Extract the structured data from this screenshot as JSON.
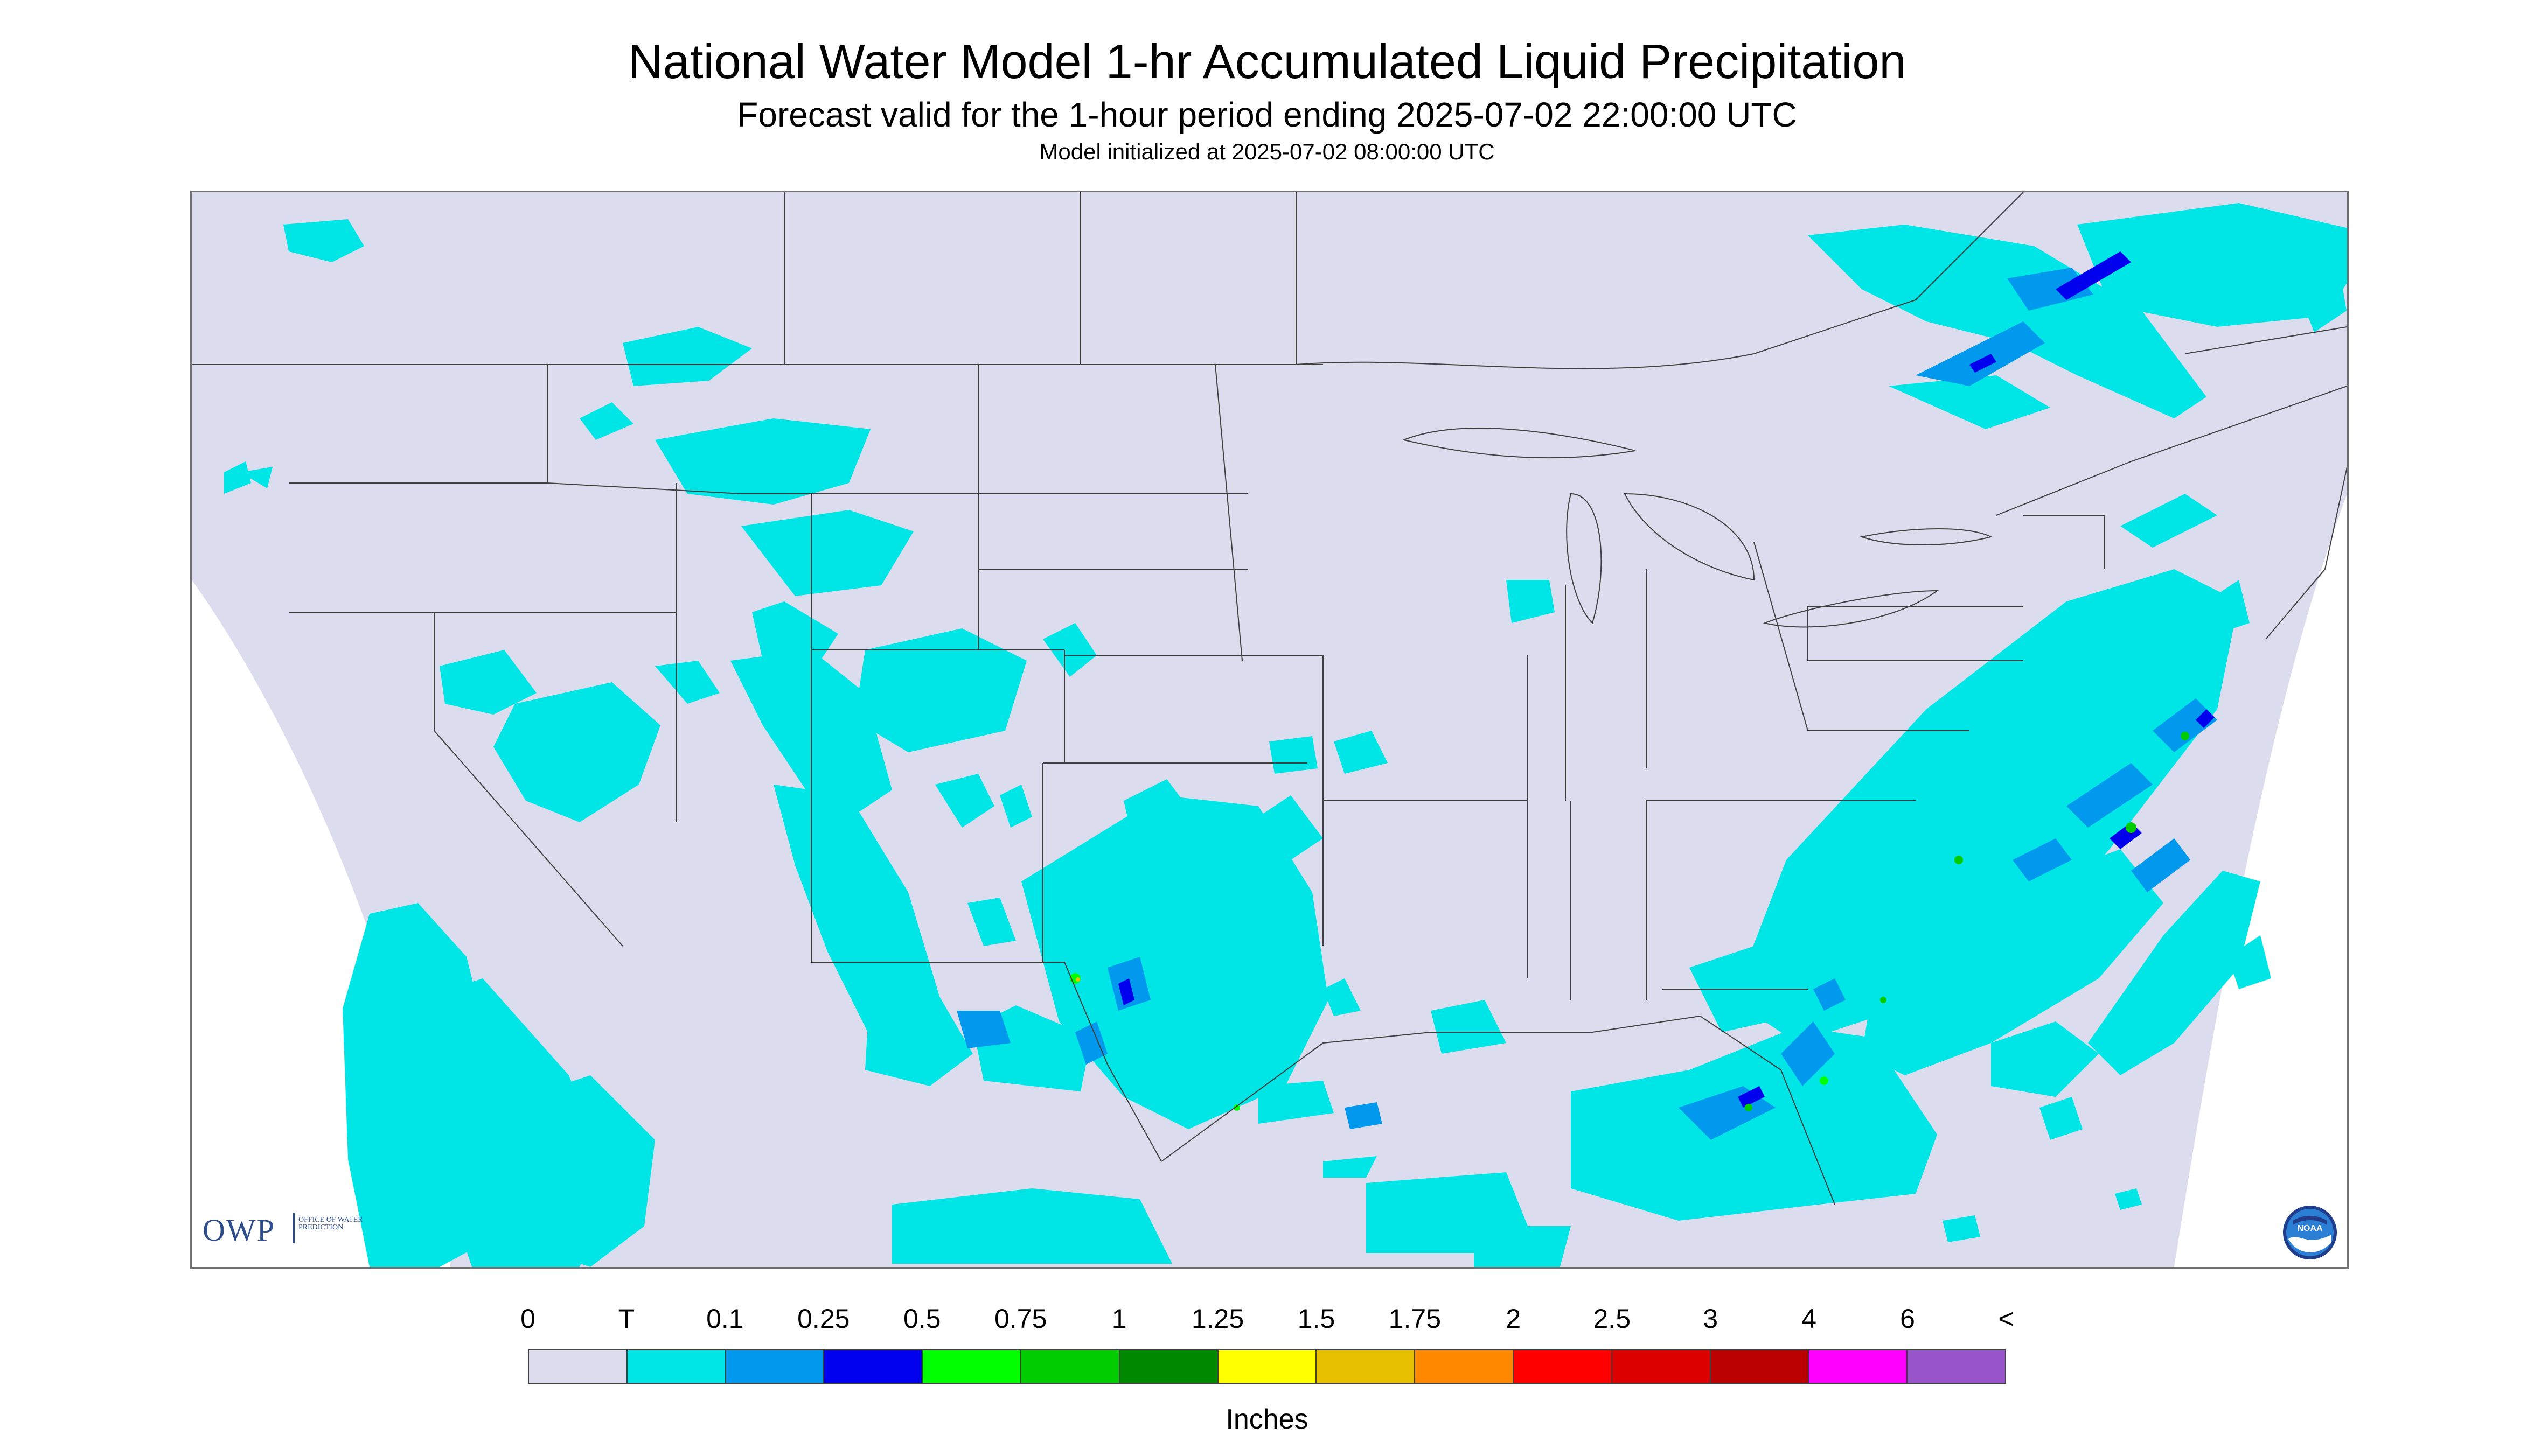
{
  "title": "National Water Model 1-hr Accumulated Liquid Precipitation",
  "subtitle": "Forecast valid for the 1-hour period ending 2025-07-02 22:00:00 UTC",
  "init_line": "Model initialized at 2025-07-02 08:00:00 UTC",
  "logos": {
    "owp_text": "OWP",
    "owp_sub": "OFFICE OF WATER PREDICTION",
    "noaa_text": "NOAA"
  },
  "legend": {
    "unit": "Inches",
    "ticks": [
      "0",
      "T",
      "0.1",
      "0.25",
      "0.5",
      "0.75",
      "1",
      "1.25",
      "1.5",
      "1.75",
      "2",
      "2.5",
      "3",
      "4",
      "6",
      "<"
    ],
    "colors": [
      "#dcdcef",
      "#00e6e6",
      "#0099ee",
      "#0000ee",
      "#00ff00",
      "#00cc00",
      "#008800",
      "#ffff00",
      "#e6c000",
      "#ff8800",
      "#ff0000",
      "#dd0000",
      "#bb0000",
      "#ff00ff",
      "#9955cc"
    ]
  },
  "map": {
    "background": "#dcdcef",
    "domain_color": "#dcdcef",
    "outside_color": "#ffffff",
    "boundary_color": "#404040"
  }
}
